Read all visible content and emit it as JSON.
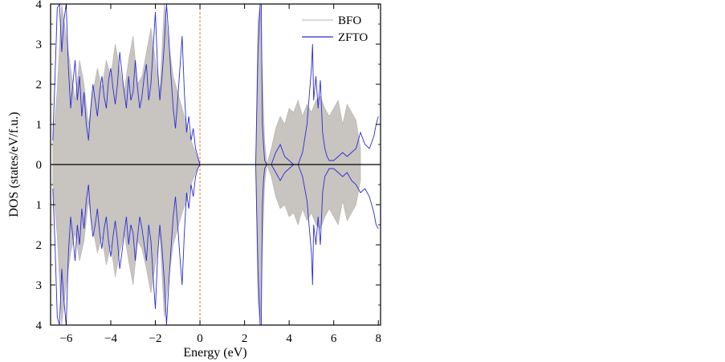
{
  "chart_data": {
    "type": "line",
    "xlabel": "Energy (eV)",
    "ylabel": "DOS (states/eV/f.u.)",
    "xlim": [
      -6.7,
      8.1
    ],
    "ylim": [
      -4,
      4
    ],
    "x_ticks": [
      -6,
      -4,
      -2,
      0,
      2,
      4,
      6,
      8
    ],
    "y_ticks": [
      4,
      3,
      2,
      1,
      0,
      -1,
      -2,
      -3,
      -4
    ],
    "y_tick_labels": [
      "4",
      "3",
      "2",
      "1",
      "0",
      "1",
      "2",
      "3",
      "4"
    ],
    "reference_line": {
      "x": 0,
      "color": "#e07a2e",
      "style": "dashed"
    },
    "legend": {
      "position": "top-right",
      "entries": [
        "BFO",
        "ZFTO"
      ]
    },
    "colors": {
      "BFO": "#c8c4bf",
      "ZFTO": "#2b2bd9"
    },
    "series": [
      {
        "name": "BFO",
        "style": "filled-area",
        "x": [
          -6.6,
          -6.4,
          -6.2,
          -6.0,
          -5.8,
          -5.6,
          -5.4,
          -5.2,
          -5.0,
          -4.8,
          -4.6,
          -4.4,
          -4.2,
          -4.0,
          -3.8,
          -3.6,
          -3.4,
          -3.2,
          -3.0,
          -2.8,
          -2.6,
          -2.4,
          -2.2,
          -2.0,
          -1.8,
          -1.6,
          -1.4,
          -1.2,
          -1.0,
          -0.8,
          -0.6,
          -0.4,
          -0.2,
          0.0,
          2.5,
          2.6,
          2.7,
          2.8,
          2.9,
          3.0,
          3.2,
          3.4,
          3.6,
          3.8,
          4.0,
          4.2,
          4.4,
          4.6,
          4.8,
          5.0,
          5.2,
          5.4,
          5.6,
          5.8,
          6.0,
          6.2,
          6.4,
          6.6,
          6.8,
          7.0,
          7.2
        ],
        "up": [
          0.5,
          1.9,
          4.0,
          3.2,
          2.4,
          1.6,
          2.6,
          2.0,
          1.0,
          1.8,
          2.4,
          1.9,
          2.6,
          2.2,
          3.0,
          2.4,
          1.8,
          2.6,
          3.2,
          2.0,
          2.2,
          2.8,
          3.4,
          2.6,
          1.8,
          4.0,
          3.0,
          2.2,
          1.8,
          1.4,
          1.0,
          0.6,
          0.3,
          0.0,
          0.0,
          3.6,
          4.0,
          2.2,
          0.6,
          0.0,
          0.4,
          0.9,
          1.2,
          1.0,
          1.4,
          1.3,
          1.6,
          1.2,
          1.5,
          1.3,
          1.6,
          1.7,
          1.4,
          1.2,
          1.4,
          1.6,
          1.0,
          1.5,
          1.3,
          1.1,
          0.4
        ],
        "down": [
          0.5,
          1.8,
          4.0,
          3.0,
          2.2,
          1.7,
          2.4,
          1.9,
          0.9,
          1.6,
          2.2,
          1.8,
          2.5,
          2.0,
          2.8,
          2.2,
          1.7,
          2.4,
          3.0,
          1.9,
          2.1,
          2.6,
          3.2,
          2.5,
          1.7,
          3.8,
          2.8,
          2.0,
          1.6,
          1.2,
          0.9,
          0.5,
          0.2,
          0.0,
          0.0,
          3.4,
          4.0,
          2.1,
          0.5,
          0.0,
          0.3,
          0.8,
          1.1,
          1.0,
          1.3,
          1.2,
          1.5,
          1.1,
          1.4,
          1.2,
          1.5,
          1.6,
          1.3,
          1.1,
          1.3,
          1.5,
          0.9,
          1.4,
          1.2,
          1.0,
          0.4
        ]
      },
      {
        "name": "ZFTO",
        "style": "line",
        "x": [
          -6.6,
          -6.5,
          -6.4,
          -6.3,
          -6.2,
          -6.1,
          -6.0,
          -5.9,
          -5.8,
          -5.7,
          -5.6,
          -5.5,
          -5.4,
          -5.3,
          -5.2,
          -5.1,
          -5.0,
          -4.9,
          -4.8,
          -4.7,
          -4.6,
          -4.5,
          -4.4,
          -4.3,
          -4.2,
          -4.1,
          -4.0,
          -3.9,
          -3.8,
          -3.7,
          -3.6,
          -3.5,
          -3.4,
          -3.3,
          -3.2,
          -3.1,
          -3.0,
          -2.9,
          -2.8,
          -2.7,
          -2.6,
          -2.5,
          -2.4,
          -2.3,
          -2.2,
          -2.1,
          -2.0,
          -1.9,
          -1.8,
          -1.7,
          -1.6,
          -1.5,
          -1.4,
          -1.3,
          -1.2,
          -1.1,
          -1.0,
          -0.9,
          -0.8,
          -0.7,
          -0.6,
          -0.5,
          -0.4,
          -0.3,
          -0.2,
          -0.1,
          0.0,
          2.5,
          2.6,
          2.7,
          2.75,
          2.8,
          2.85,
          2.9,
          3.0,
          3.2,
          3.4,
          3.6,
          3.8,
          4.0,
          4.2,
          4.4,
          4.6,
          4.8,
          5.0,
          5.05,
          5.1,
          5.2,
          5.3,
          5.4,
          5.5,
          5.6,
          5.7,
          5.8,
          6.0,
          6.2,
          6.4,
          6.6,
          6.8,
          7.0,
          7.2,
          7.4,
          7.6,
          7.8,
          7.9,
          8.0
        ],
        "up": [
          0.6,
          2.2,
          3.9,
          4.0,
          2.8,
          3.6,
          4.0,
          2.4,
          1.4,
          2.0,
          2.6,
          1.6,
          2.2,
          1.2,
          1.8,
          1.0,
          0.6,
          1.4,
          2.0,
          1.6,
          1.2,
          1.8,
          2.2,
          1.7,
          1.4,
          2.1,
          2.4,
          1.9,
          1.5,
          2.0,
          2.8,
          2.3,
          1.8,
          1.4,
          2.2,
          1.6,
          1.8,
          2.6,
          1.9,
          1.4,
          1.7,
          2.2,
          2.5,
          1.6,
          2.0,
          2.9,
          3.8,
          2.4,
          1.6,
          2.2,
          3.0,
          4.0,
          3.2,
          2.2,
          1.4,
          0.9,
          1.6,
          2.4,
          3.2,
          1.8,
          0.8,
          1.2,
          0.6,
          0.9,
          0.4,
          0.2,
          0.0,
          0.0,
          2.8,
          4.0,
          4.0,
          1.0,
          0.5,
          0.1,
          0.0,
          0.0,
          0.3,
          0.5,
          0.2,
          0.1,
          0.0,
          0.0,
          0.3,
          1.0,
          2.4,
          3.0,
          1.6,
          2.2,
          1.4,
          2.1,
          0.8,
          0.4,
          0.2,
          0.1,
          0.1,
          0.2,
          0.3,
          0.2,
          0.3,
          0.4,
          0.8,
          0.5,
          0.4,
          0.7,
          1.0,
          1.2
        ],
        "down": [
          0.6,
          2.0,
          3.8,
          4.0,
          2.6,
          3.4,
          4.0,
          2.2,
          1.3,
          1.8,
          2.4,
          1.5,
          2.0,
          1.1,
          1.6,
          0.9,
          0.5,
          1.3,
          1.8,
          1.5,
          1.1,
          1.7,
          2.1,
          1.6,
          1.3,
          1.9,
          2.3,
          1.8,
          1.4,
          1.9,
          2.6,
          2.2,
          1.7,
          1.3,
          2.0,
          1.5,
          1.7,
          2.4,
          1.8,
          1.3,
          1.6,
          2.0,
          2.4,
          1.5,
          1.9,
          2.8,
          3.6,
          2.3,
          1.5,
          2.1,
          2.9,
          4.0,
          3.0,
          2.1,
          1.3,
          0.8,
          1.5,
          2.3,
          3.0,
          1.7,
          0.7,
          1.1,
          0.5,
          0.8,
          0.3,
          0.1,
          0.0,
          0.0,
          2.6,
          4.0,
          4.0,
          1.0,
          0.4,
          0.1,
          0.0,
          0.0,
          0.2,
          0.4,
          0.2,
          0.1,
          0.0,
          0.0,
          0.3,
          0.9,
          2.2,
          3.0,
          1.5,
          2.0,
          1.3,
          2.0,
          0.7,
          0.3,
          0.2,
          0.1,
          0.1,
          0.2,
          0.3,
          0.2,
          0.4,
          0.5,
          0.7,
          0.6,
          0.8,
          1.2,
          1.5,
          1.6
        ]
      }
    ]
  }
}
